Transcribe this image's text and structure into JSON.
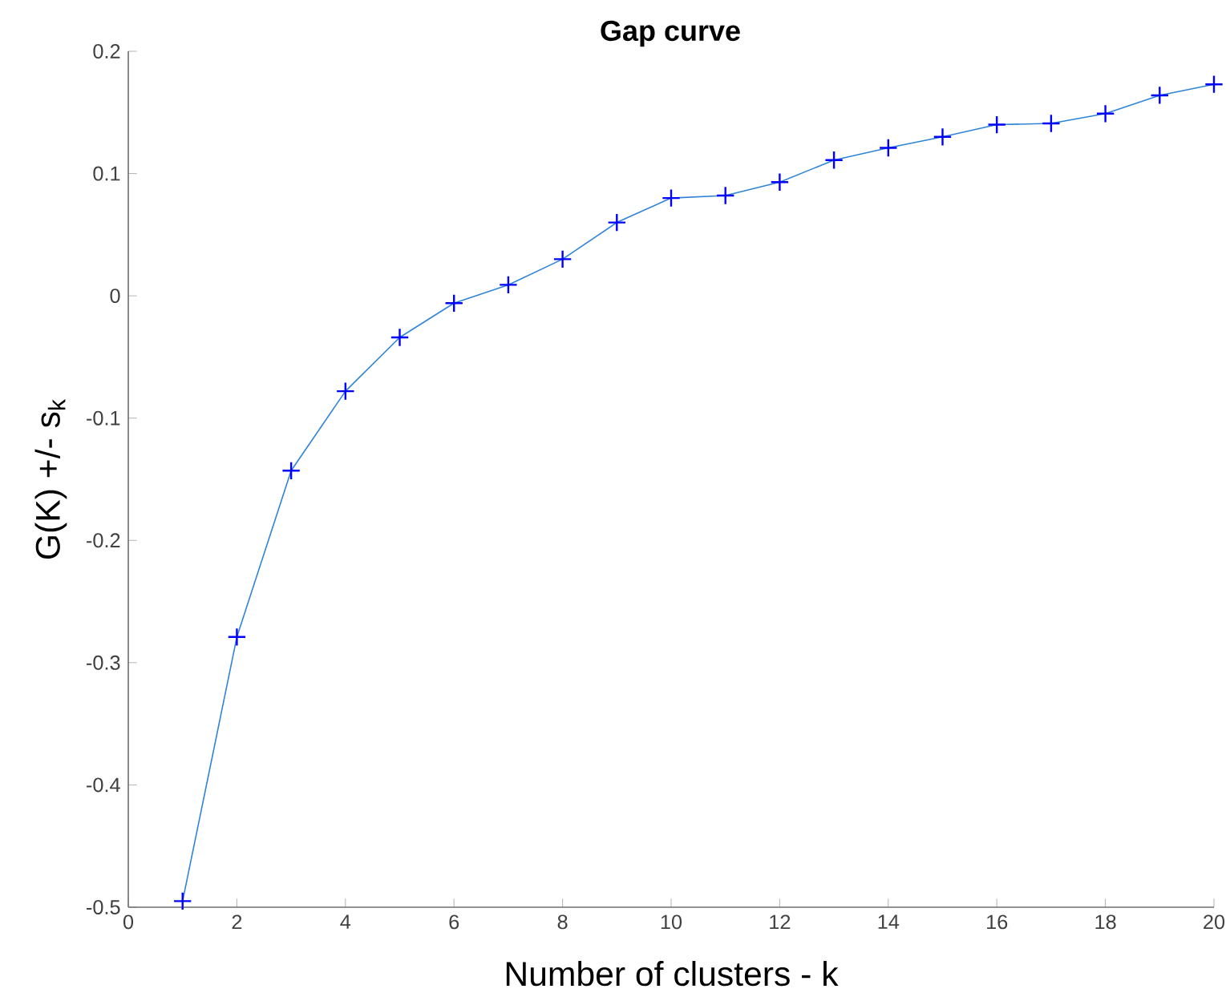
{
  "chart_data": {
    "type": "line",
    "title": "Gap curve",
    "xlabel": "Number of clusters - k",
    "ylabel": "G(K) +/- s$_{k}$",
    "x": [
      1,
      2,
      3,
      4,
      5,
      6,
      7,
      8,
      9,
      10,
      11,
      12,
      13,
      14,
      15,
      16,
      17,
      18,
      19,
      20
    ],
    "series": [
      {
        "color": "#2f84d8",
        "values": [
          -0.495,
          -0.279,
          -0.143,
          -0.078,
          -0.034,
          -0.006,
          0.009,
          0.03,
          0.06,
          0.08,
          0.082,
          0.093,
          0.111,
          0.121,
          0.13,
          0.14,
          0.141,
          0.149,
          0.164,
          0.173
        ]
      }
    ],
    "marker": "cross",
    "line_style": "solid",
    "xlim": [
      0,
      20
    ],
    "ylim": [
      -0.5,
      0.2
    ],
    "xticks": [
      0,
      2,
      4,
      6,
      8,
      10,
      12,
      14,
      16,
      18,
      20
    ],
    "yticks": [
      -0.5,
      -0.4,
      -0.3,
      -0.2,
      -0.1,
      0,
      0.1,
      0.2
    ]
  }
}
